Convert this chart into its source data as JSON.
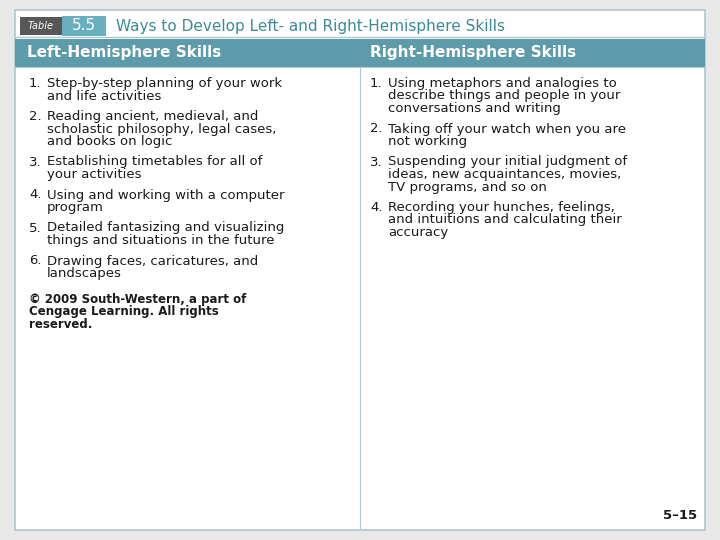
{
  "title_table": "5.5",
  "title_text": "Ways to Develop Left- and Right-Hemisphere Skills",
  "header_left": "Left-Hemisphere Skills",
  "header_right": "Right-Hemisphere Skills",
  "left_items": [
    [
      "Step-by-step planning of your work",
      "and life activities"
    ],
    [
      "Reading ancient, medieval, and",
      "scholastic philosophy, legal cases,",
      "and books on logic"
    ],
    [
      "Establishing timetables for all of",
      "your activities"
    ],
    [
      "Using and working with a computer",
      "program"
    ],
    [
      "Detailed fantasizing and visualizing",
      "things and situations in the future"
    ],
    [
      "Drawing faces, caricatures, and",
      "landscapes"
    ]
  ],
  "right_items": [
    [
      "Using metaphors and analogies to",
      "describe things and people in your",
      "conversations and writing"
    ],
    [
      "Taking off your watch when you are",
      "not working"
    ],
    [
      "Suspending your initial judgment of",
      "ideas, new acquaintances, movies,",
      "TV programs, and so on"
    ],
    [
      "Recording your hunches, feelings,",
      "and intuitions and calculating their",
      "accuracy"
    ]
  ],
  "footer_line1": "© 2009 South-Western, a part of",
  "footer_line2": "Cengage Learning. All rights",
  "footer_line3": "reserved.",
  "page_num": "5–15",
  "bg_color": "#e8e8e8",
  "white": "#ffffff",
  "header_bg": "#5d9baa",
  "table_label_bg": "#555555",
  "table_num_bg": "#68afc0",
  "border_color": "#aec8cf",
  "header_text_color": "#ffffff",
  "body_text_color": "#1a1a1a",
  "title_text_color": "#3a8a98",
  "table_label_text": "Table",
  "body_font": 9.5,
  "header_font": 11.0,
  "title_font": 11.0
}
